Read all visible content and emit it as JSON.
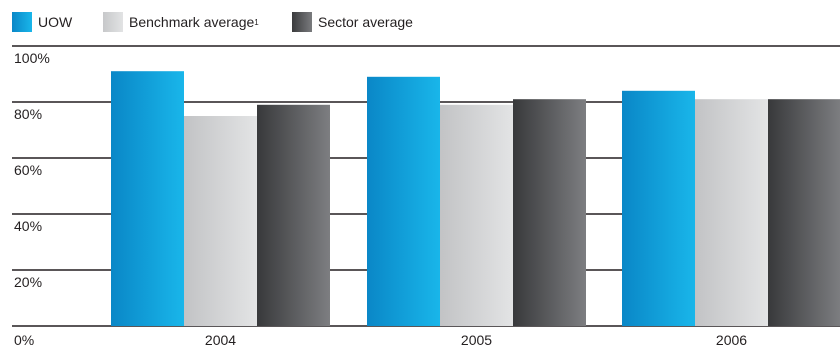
{
  "legend": {
    "uow": "UOW",
    "benchmark": "Benchmark average",
    "benchmark_sup": "1",
    "sector": "Sector average"
  },
  "colors": {
    "uow_dark": "#0a87c7",
    "uow_light": "#19b6ea",
    "bench_dark": "#c7c8ca",
    "bench_light": "#e2e3e4",
    "sector_dark": "#3a3b3d",
    "sector_light": "#7a7b7e",
    "axis": "#231f20"
  },
  "chart_data": {
    "type": "bar",
    "categories": [
      "2004",
      "2005",
      "2006"
    ],
    "series": [
      {
        "name": "UOW",
        "values": [
          91,
          89,
          84
        ]
      },
      {
        "name": "Benchmark average",
        "values": [
          75,
          79,
          81
        ]
      },
      {
        "name": "Sector average",
        "values": [
          79,
          81,
          81
        ]
      }
    ],
    "yticks": [
      "0%",
      "20%",
      "40%",
      "60%",
      "80%",
      "100%"
    ],
    "ylim": [
      0,
      100
    ],
    "grid": true,
    "legend_position": "top-left"
  }
}
